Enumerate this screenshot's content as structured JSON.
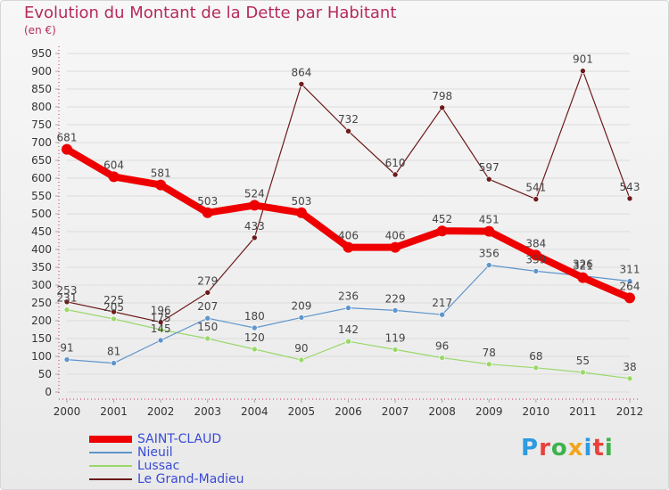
{
  "chart_data": {
    "type": "line",
    "title": "Evolution du Montant de la Dette par Habitant",
    "subtitle": "(en €)",
    "xlabel": "",
    "ylabel": "",
    "categories": [
      "2000",
      "2001",
      "2002",
      "2003",
      "2004",
      "2005",
      "2006",
      "2007",
      "2008",
      "2009",
      "2010",
      "2011",
      "2012"
    ],
    "ylim": [
      0,
      950
    ],
    "ytick_step": 50,
    "grid": true,
    "legend_position": "bottom-left",
    "series": [
      {
        "name": "SAINT-CLAUD",
        "color": "#ee0000",
        "values": [
          681,
          604,
          581,
          503,
          524,
          503,
          406,
          406,
          452,
          451,
          384,
          321,
          264
        ]
      },
      {
        "name": "Nieuil",
        "color": "#5e95cc",
        "values": [
          91,
          81,
          145,
          207,
          180,
          209,
          236,
          229,
          217,
          356,
          339,
          326,
          311
        ]
      },
      {
        "name": "Lussac",
        "color": "#9ad86a",
        "values": [
          231,
          205,
          175,
          150,
          120,
          90,
          142,
          119,
          96,
          78,
          68,
          55,
          38
        ]
      },
      {
        "name": "Le Grand-Madieu",
        "color": "#6d1a1a",
        "values": [
          253,
          225,
          196,
          279,
          433,
          864,
          732,
          610,
          798,
          597,
          541,
          901,
          543
        ]
      }
    ]
  },
  "logo_text": "Proxiti",
  "logo_colors": [
    "#2d9be0",
    "#e8413a",
    "#3cb34a",
    "#f2a51d",
    "#2d9be0",
    "#e8413a",
    "#3cb34a"
  ]
}
